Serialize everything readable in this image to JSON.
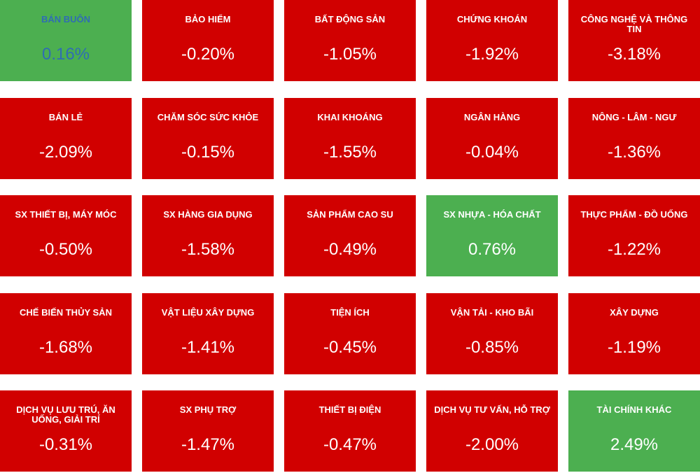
{
  "tiles": [
    {
      "name": "BÁN BUÔN",
      "change": "0.16%",
      "color": "#4caf50",
      "text_color": "#2f6db3"
    },
    {
      "name": "BẢO HIỂM",
      "change": "-0.20%",
      "color": "#d10000",
      "text_color": "#ffffff"
    },
    {
      "name": "BẤT ĐỘNG SẢN",
      "change": "-1.05%",
      "color": "#d10000",
      "text_color": "#ffffff"
    },
    {
      "name": "CHỨNG KHOÁN",
      "change": "-1.92%",
      "color": "#d10000",
      "text_color": "#ffffff"
    },
    {
      "name": "CÔNG NGHỆ VÀ THÔNG TIN",
      "change": "-3.18%",
      "color": "#d10000",
      "text_color": "#ffffff"
    },
    {
      "name": "BÁN LẺ",
      "change": "-2.09%",
      "color": "#d10000",
      "text_color": "#ffffff"
    },
    {
      "name": "CHĂM SÓC SỨC KHỎE",
      "change": "-0.15%",
      "color": "#d10000",
      "text_color": "#ffffff"
    },
    {
      "name": "KHAI KHOÁNG",
      "change": "-1.55%",
      "color": "#d10000",
      "text_color": "#ffffff"
    },
    {
      "name": "NGÂN HÀNG",
      "change": "-0.04%",
      "color": "#d10000",
      "text_color": "#ffffff"
    },
    {
      "name": "NÔNG - LÂM - NGƯ",
      "change": "-1.36%",
      "color": "#d10000",
      "text_color": "#ffffff"
    },
    {
      "name": "SX THIẾT BỊ, MÁY MÓC",
      "change": "-0.50%",
      "color": "#d10000",
      "text_color": "#ffffff"
    },
    {
      "name": "SX HÀNG GIA DỤNG",
      "change": "-1.58%",
      "color": "#d10000",
      "text_color": "#ffffff"
    },
    {
      "name": "SẢN PHẨM CAO SU",
      "change": "-0.49%",
      "color": "#d10000",
      "text_color": "#ffffff"
    },
    {
      "name": "SX NHỰA - HÓA CHẤT",
      "change": "0.76%",
      "color": "#4caf50",
      "text_color": "#ffffff"
    },
    {
      "name": "THỰC PHẨM - ĐỒ UỐNG",
      "change": "-1.22%",
      "color": "#d10000",
      "text_color": "#ffffff"
    },
    {
      "name": "CHẾ BIẾN THỦY SẢN",
      "change": "-1.68%",
      "color": "#d10000",
      "text_color": "#ffffff"
    },
    {
      "name": "VẬT LIỆU XÂY DỰNG",
      "change": "-1.41%",
      "color": "#d10000",
      "text_color": "#ffffff"
    },
    {
      "name": "TIỆN ÍCH",
      "change": "-0.45%",
      "color": "#d10000",
      "text_color": "#ffffff"
    },
    {
      "name": "VẬN TẢI - KHO BÃI",
      "change": "-0.85%",
      "color": "#d10000",
      "text_color": "#ffffff"
    },
    {
      "name": "XÂY DỰNG",
      "change": "-1.19%",
      "color": "#d10000",
      "text_color": "#ffffff"
    },
    {
      "name": "DỊCH VỤ LƯU TRÚ, ĂN UỐNG, GIẢI TRÍ",
      "change": "-0.31%",
      "color": "#d10000",
      "text_color": "#ffffff"
    },
    {
      "name": "SX PHỤ TRỢ",
      "change": "-1.47%",
      "color": "#d10000",
      "text_color": "#ffffff"
    },
    {
      "name": "THIẾT BỊ ĐIỆN",
      "change": "-0.47%",
      "color": "#d10000",
      "text_color": "#ffffff"
    },
    {
      "name": "DỊCH VỤ TƯ VẤN, HỖ TRỢ",
      "change": "-2.00%",
      "color": "#d10000",
      "text_color": "#ffffff"
    },
    {
      "name": "TÀI CHÍNH KHÁC",
      "change": "2.49%",
      "color": "#4caf50",
      "text_color": "#ffffff"
    }
  ]
}
